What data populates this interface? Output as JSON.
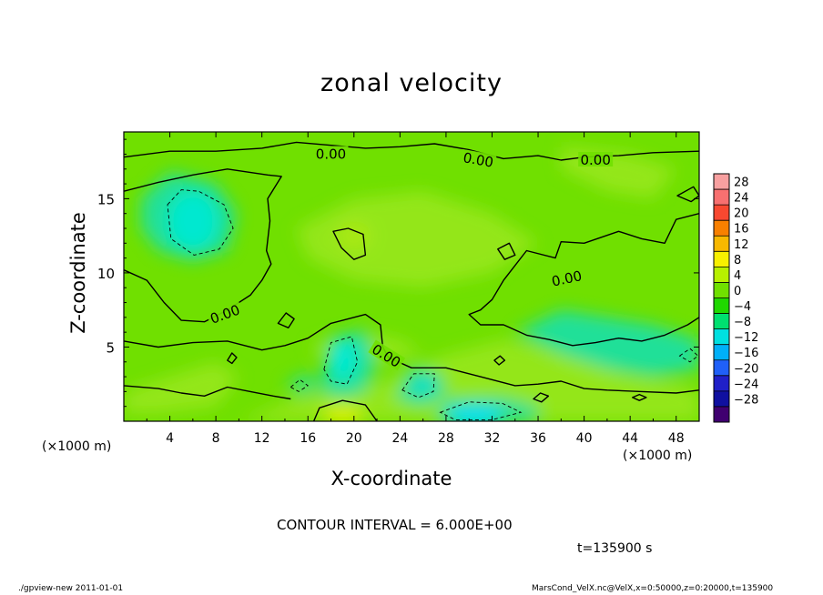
{
  "title": "zonal velocity",
  "xlabel": "X-coordinate",
  "ylabel": "Z-coordinate",
  "x_unit_left": "(×1000 m)",
  "x_unit_right": "(×1000 m)",
  "contour_interval_text": "CONTOUR INTERVAL = 6.000E+00",
  "time_text": "t=135900 s",
  "footer_left": "./gpview-new   2011-01-01",
  "footer_right": "MarsCond_VelX.nc@VelX,x=0:50000,z=0:20000,t=135900",
  "contour_labels": [
    "0.00",
    "0.00",
    "0.00",
    "0.00",
    "0.00",
    "0.00"
  ],
  "chart_data": {
    "type": "heatmap",
    "title": "zonal velocity",
    "xlabel": "X-coordinate",
    "ylabel": "Z-coordinate",
    "xlim": [
      0,
      50
    ],
    "ylim": [
      0,
      19.5
    ],
    "x_ticks": [
      4,
      8,
      12,
      16,
      20,
      24,
      28,
      32,
      36,
      40,
      44,
      48
    ],
    "y_ticks": [
      5,
      10,
      15
    ],
    "contour_interval": 6.0,
    "colorbar_ticks": [
      28,
      24,
      20,
      16,
      12,
      8,
      4,
      0,
      -4,
      -8,
      -12,
      -16,
      -20,
      -24,
      -28
    ],
    "colorbar_colors": [
      "#f8a0a0",
      "#f87070",
      "#f84830",
      "#f88000",
      "#f8b800",
      "#f8f000",
      "#b8f000",
      "#70e000",
      "#20d800",
      "#00e070",
      "#00e0e0",
      "#00b0f8",
      "#2060f8",
      "#2020c8",
      "#1010a0",
      "#400070"
    ],
    "colorbar_legend_position": "right",
    "field_range": [
      -10,
      10
    ],
    "features": [
      {
        "kind": "negative-core",
        "x": 6,
        "z": 13.5,
        "min": -8
      },
      {
        "kind": "negative-core",
        "x": 19,
        "z": 4.2,
        "min": -8
      },
      {
        "kind": "negative-core",
        "x": 26,
        "z": 2.5,
        "min": -6
      },
      {
        "kind": "negative-core",
        "x": 30,
        "z": 0.3,
        "min": -10
      },
      {
        "kind": "positive-core",
        "x": 19,
        "z": 0.5,
        "max": 8
      },
      {
        "kind": "positive-core",
        "x": 20,
        "z": 12.5,
        "max": 4
      }
    ]
  }
}
